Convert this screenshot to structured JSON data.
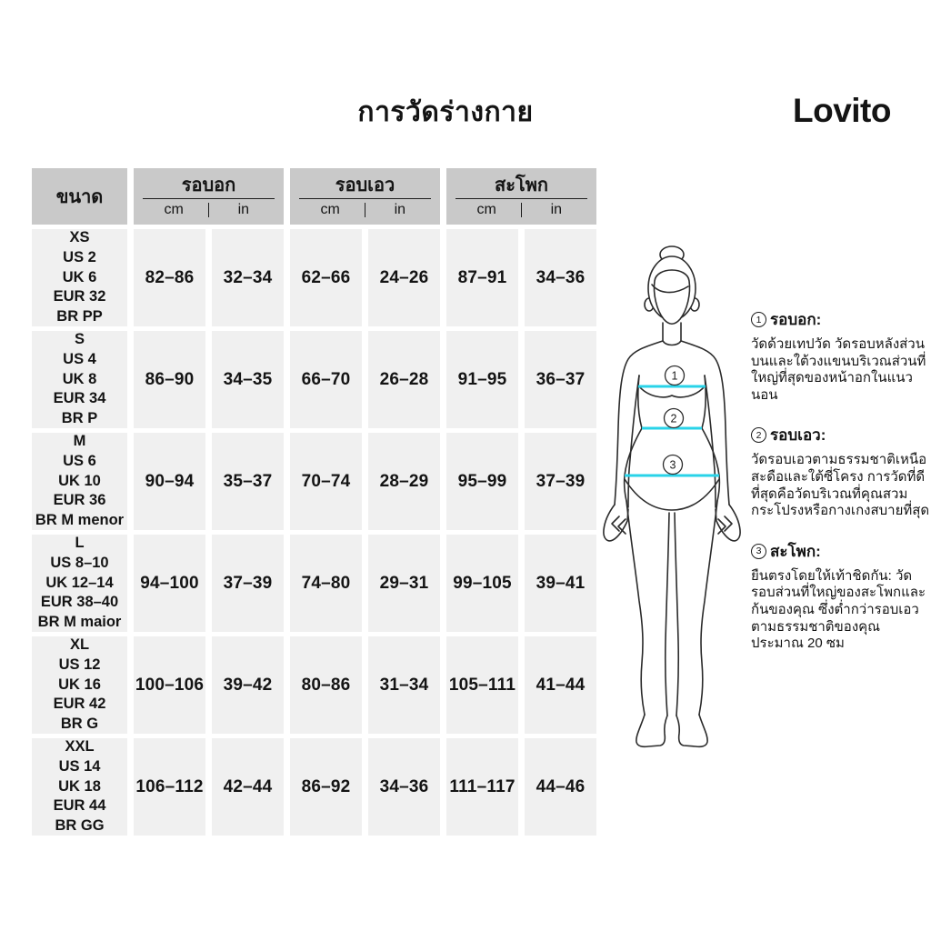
{
  "page": {
    "title": "การวัดร่างกาย",
    "brand": "Lovito"
  },
  "colors": {
    "accent": "#29d3e8",
    "header_bg": "#c9c9c9",
    "cell_bg": "#f0f0f0",
    "text": "#141414"
  },
  "table": {
    "size_header": "ขนาด",
    "groups": [
      {
        "label": "รอบอก",
        "units": [
          "cm",
          "in"
        ]
      },
      {
        "label": "รอบเอว",
        "units": [
          "cm",
          "in"
        ]
      },
      {
        "label": "สะโพก",
        "units": [
          "cm",
          "in"
        ]
      }
    ],
    "rows": [
      {
        "size": "XS\nUS 2\nUK 6\nEUR 32\nBR PP",
        "values": [
          "82–86",
          "32–34",
          "62–66",
          "24–26",
          "87–91",
          "34–36"
        ]
      },
      {
        "size": "S\nUS 4\nUK 8\nEUR 34\nBR P",
        "values": [
          "86–90",
          "34–35",
          "66–70",
          "26–28",
          "91–95",
          "36–37"
        ]
      },
      {
        "size": "M\nUS 6\nUK 10\nEUR 36\nBR M menor",
        "values": [
          "90–94",
          "35–37",
          "70–74",
          "28–29",
          "95–99",
          "37–39"
        ]
      },
      {
        "size": "L\nUS 8–10\nUK 12–14\nEUR 38–40\nBR M maior",
        "values": [
          "94–100",
          "37–39",
          "74–80",
          "29–31",
          "99–105",
          "39–41"
        ]
      },
      {
        "size": "XL\nUS 12\nUK 16\nEUR 42\nBR G",
        "values": [
          "100–106",
          "39–42",
          "80–86",
          "31–34",
          "105–111",
          "41–44"
        ]
      },
      {
        "size": "XXL\nUS 14\nUK 18\nEUR 44\nBR GG",
        "values": [
          "106–112",
          "42–44",
          "86–92",
          "34–36",
          "111–117",
          "44–46"
        ]
      }
    ]
  },
  "figure": {
    "markers": [
      "1",
      "2",
      "3"
    ]
  },
  "instructions": {
    "sections": [
      {
        "num": "1",
        "title": "รอบอก:",
        "body": "วัดด้วยเทปวัด วัดรอบหลังส่วนบนและใต้วงแขนบริเวณส่วนที่ใหญ่ที่สุดของหน้าอกในแนวนอน"
      },
      {
        "num": "2",
        "title": "รอบเอว:",
        "body": "วัดรอบเอวตามธรรมชาติเหนือสะดือและใต้ซี่โครง การวัดที่ดีที่สุดคือวัดบริเวณที่คุณสวมกระโปรงหรือกางเกงสบายที่สุด"
      },
      {
        "num": "3",
        "title": "สะโพก:",
        "body": "ยืนตรงโดยให้เท้าชิดกัน: วัดรอบส่วนที่ใหญ่ของสะโพกและก้นของคุณ ซึ่งต่ำกว่ารอบเอวตามธรรมชาติของคุณประมาณ 20 ซม"
      }
    ]
  }
}
